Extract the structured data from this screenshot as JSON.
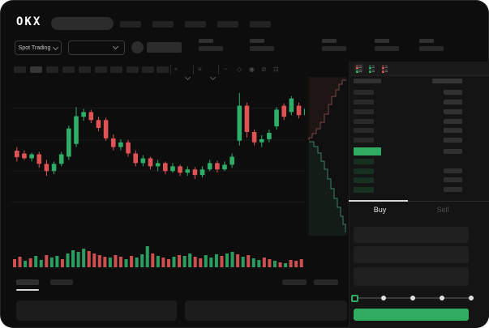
{
  "brand": {
    "logo_text": "OKX"
  },
  "topnav": {
    "nav_items": 5
  },
  "market_bar": {
    "market_type_label": "Spot Trading",
    "stat_placeholders": 5
  },
  "toolbar": {
    "timeframe_chips": 10,
    "active_chip_index": 1,
    "icons": [
      {
        "name": "line-style-icon",
        "glyph": "~"
      },
      {
        "name": "indicators-icon",
        "glyph": "◇"
      },
      {
        "name": "camera-icon",
        "glyph": "◉"
      },
      {
        "name": "hide-drawings-icon",
        "glyph": "⊘"
      },
      {
        "name": "fullscreen-icon",
        "glyph": "⊡"
      }
    ]
  },
  "chart_data": {
    "type": "candlestick",
    "ylim": [
      0,
      100
    ],
    "gridlines": [
      80.5,
      60.5,
      41,
      21.5
    ],
    "up_color": "#2eaf68",
    "down_color": "#df5354",
    "candles": [
      [
        53.8,
        56,
        47,
        49.7
      ],
      [
        52,
        54,
        48,
        49
      ],
      [
        49,
        52.5,
        47,
        51.5
      ],
      [
        51.5,
        53,
        43,
        45.5
      ],
      [
        45.5,
        48,
        38,
        41
      ],
      [
        41,
        47,
        39,
        45.5
      ],
      [
        45.5,
        53,
        44,
        51.5
      ],
      [
        50,
        69.5,
        48,
        67.7
      ],
      [
        58,
        81,
        56,
        75.4
      ],
      [
        75,
        80,
        72.5,
        78
      ],
      [
        78,
        79.5,
        71,
        73
      ],
      [
        73,
        75,
        66,
        68
      ],
      [
        73,
        74.5,
        60,
        61.5
      ],
      [
        61.5,
        64,
        54,
        56
      ],
      [
        56,
        61,
        54,
        59
      ],
      [
        59,
        60.5,
        50,
        52
      ],
      [
        52,
        54,
        44,
        46
      ],
      [
        46,
        51,
        44,
        49
      ],
      [
        49,
        50,
        42,
        44
      ],
      [
        44,
        48,
        41,
        46
      ],
      [
        46,
        47,
        39,
        41
      ],
      [
        41,
        46,
        40,
        44
      ],
      [
        44,
        45,
        38,
        40
      ],
      [
        40,
        44,
        38,
        42
      ],
      [
        42,
        43.5,
        36,
        38.5
      ],
      [
        38.5,
        44,
        37,
        42
      ],
      [
        42,
        48,
        41,
        46
      ],
      [
        46,
        47.5,
        40,
        42
      ],
      [
        42,
        47,
        41,
        45
      ],
      [
        45,
        52,
        43,
        50
      ],
      [
        60,
        90,
        57,
        82
      ],
      [
        82,
        84,
        62,
        65.5
      ],
      [
        65.5,
        67,
        57,
        59
      ],
      [
        59,
        63.5,
        56,
        61
      ],
      [
        61,
        67,
        59,
        65
      ],
      [
        69,
        81,
        67,
        79.5
      ],
      [
        82,
        83.5,
        73,
        75
      ],
      [
        78,
        88,
        76,
        86.5
      ],
      [
        82,
        84,
        74,
        76
      ],
      [
        76,
        81,
        74,
        80
      ]
    ],
    "volume": {
      "up_color": "#2a9d61",
      "down_color": "#cf4f4f",
      "heights": [
        10,
        13,
        8,
        11,
        14,
        9,
        15,
        12,
        14,
        10,
        17,
        21,
        19,
        23,
        20,
        17,
        15,
        13,
        12,
        15,
        13,
        10,
        14,
        12,
        16,
        26,
        17,
        14,
        12,
        10,
        13,
        15,
        14,
        17,
        13,
        11,
        15,
        12,
        16,
        14,
        17,
        19,
        16,
        13,
        15,
        11,
        9,
        12,
        10,
        8,
        6,
        5,
        9,
        8,
        10
      ],
      "colors": [
        "r",
        "r",
        "g",
        "r",
        "g",
        "g",
        "r",
        "g",
        "g",
        "r",
        "g",
        "g",
        "g",
        "g",
        "r",
        "r",
        "r",
        "r",
        "g",
        "r",
        "r",
        "g",
        "r",
        "g",
        "g",
        "g",
        "r",
        "g",
        "r",
        "r",
        "g",
        "r",
        "g",
        "g",
        "r",
        "r",
        "g",
        "g",
        "g",
        "r",
        "g",
        "g",
        "r",
        "g",
        "r",
        "g",
        "g",
        "r",
        "r",
        "g",
        "r",
        "g",
        "r",
        "r",
        "r"
      ]
    },
    "depth": {
      "ask_line": "#7c4646",
      "bid_line": "#3e7f63",
      "ask_fill": "rgba(150,60,60,0.10)",
      "bid_fill": "rgba(45,140,90,0.10)",
      "asks": [
        [
          49,
          4
        ],
        [
          44,
          9
        ],
        [
          40,
          16
        ],
        [
          36,
          24
        ],
        [
          31,
          34
        ],
        [
          27,
          46
        ],
        [
          22,
          56
        ],
        [
          17,
          64
        ],
        [
          12,
          70
        ],
        [
          7,
          75
        ],
        [
          3,
          78
        ]
      ],
      "bids": [
        [
          3,
          80
        ],
        [
          9,
          86
        ],
        [
          14,
          94
        ],
        [
          18,
          104
        ],
        [
          22,
          114
        ],
        [
          26,
          126
        ],
        [
          30,
          138
        ],
        [
          34,
          150
        ],
        [
          38,
          161
        ],
        [
          42,
          172
        ],
        [
          45,
          182
        ],
        [
          48,
          192
        ]
      ]
    }
  },
  "orderbook": {
    "asks_rows": 6,
    "bids_rows": 4,
    "ask_right_bars": [
      true,
      true,
      true,
      true,
      true,
      true
    ],
    "bid_right_bars": [
      false,
      true,
      true,
      true
    ],
    "price_color": "#2fac60",
    "view_icons": [
      {
        "name": "orderbook-view-both-icon",
        "colors": [
          "#d95757",
          "#d95757",
          "#31b06a",
          "#31b06a"
        ],
        "selected": true
      },
      {
        "name": "orderbook-view-bids-icon",
        "colors": [
          "#31b06a",
          "#31b06a",
          "#31b06a",
          "#31b06a"
        ],
        "selected": false
      },
      {
        "name": "orderbook-view-asks-icon",
        "colors": [
          "#d95757",
          "#d95757",
          "#d95757",
          "#d95757"
        ],
        "selected": false
      }
    ]
  },
  "trade_panel": {
    "buy_label": "Buy",
    "sell_label": "Sell",
    "active_tab": "Buy",
    "fields_count": 3,
    "slider_stops": 5,
    "submit_color": "#2fac60"
  }
}
